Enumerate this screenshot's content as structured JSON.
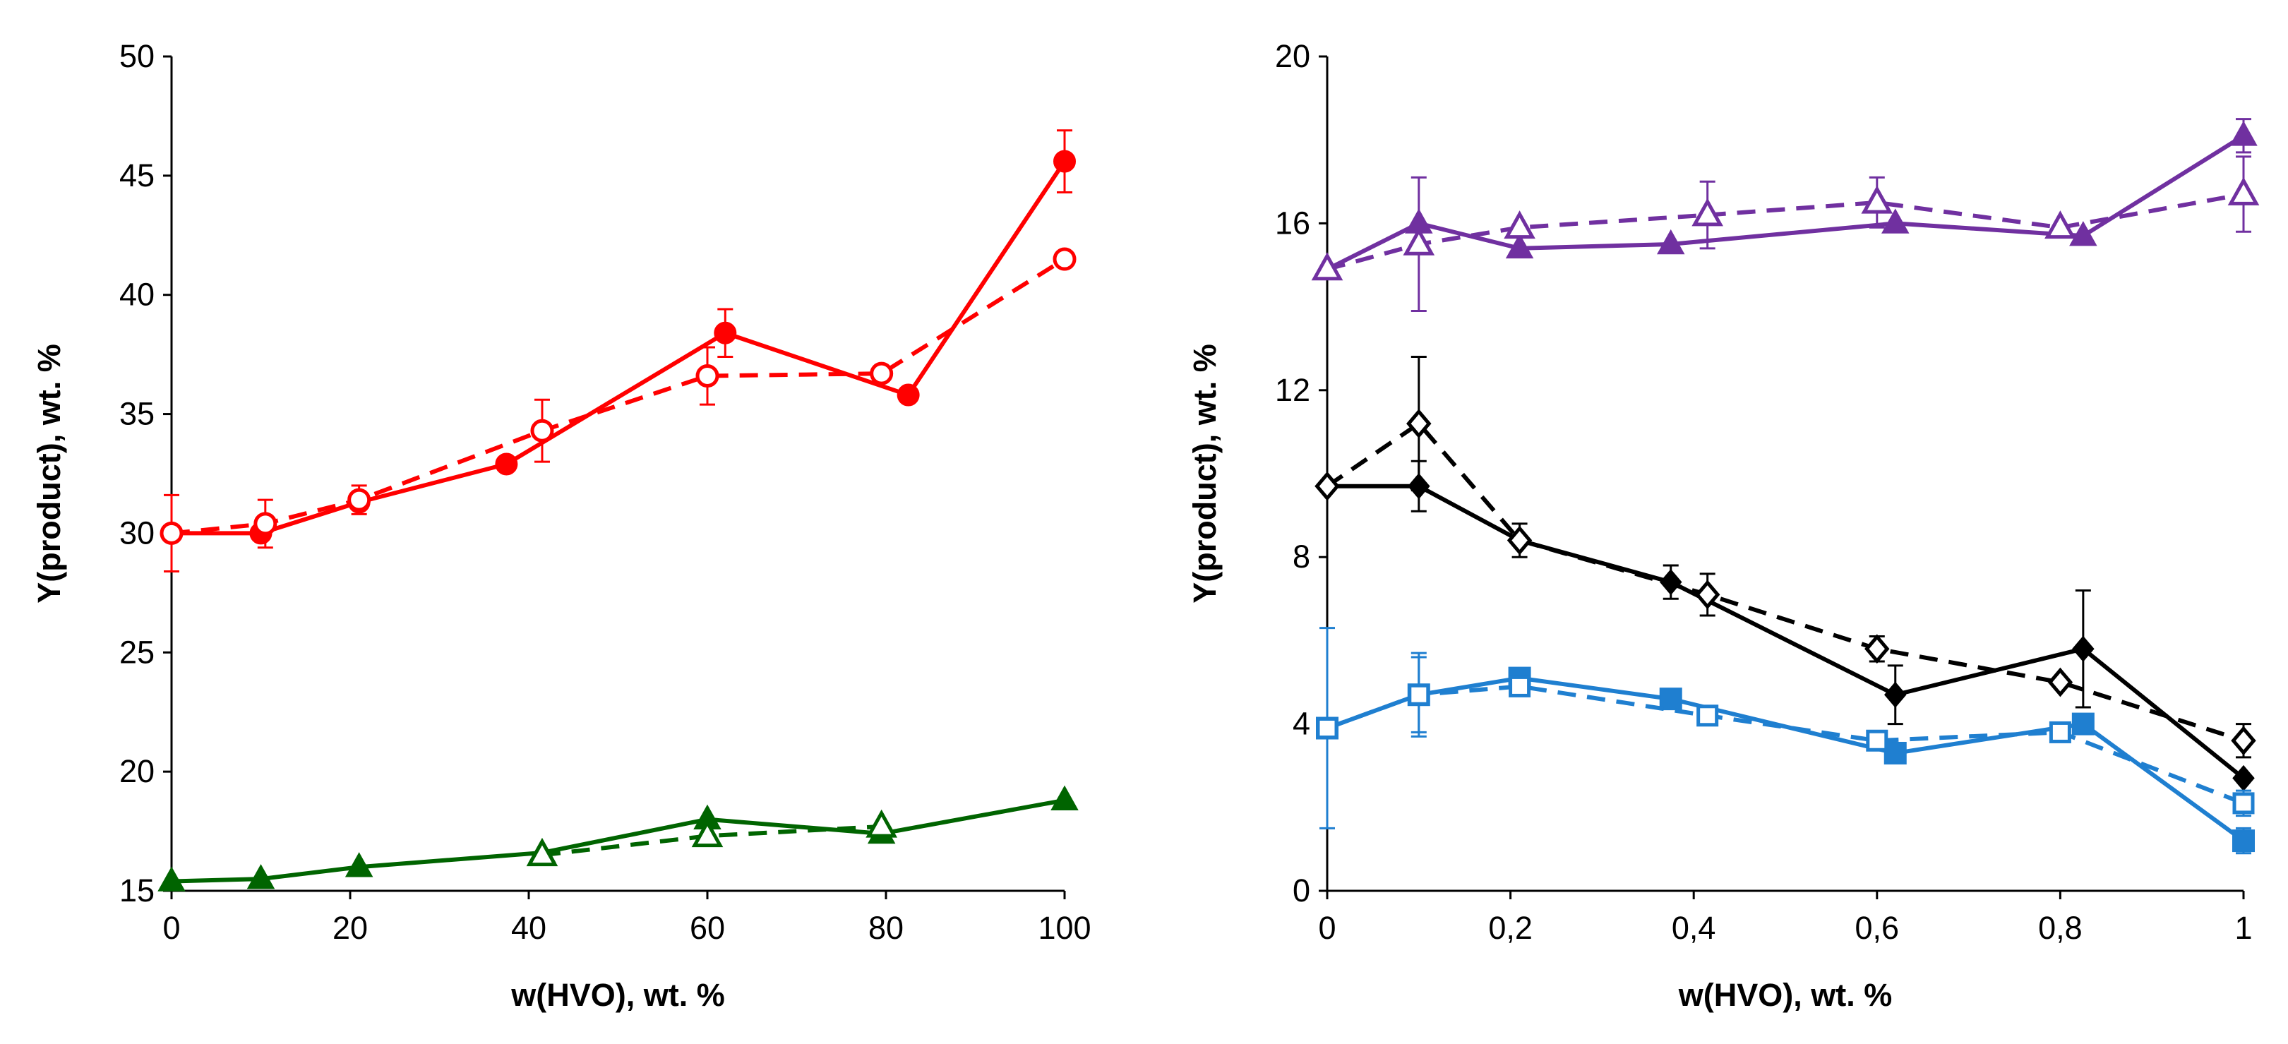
{
  "chart_data": [
    {
      "type": "line",
      "panel": "left",
      "title": "",
      "xlabel": "w(HVO), wt. %",
      "ylabel": "Y(product), wt. %",
      "xlim": [
        0,
        100
      ],
      "ylim": [
        15,
        50
      ],
      "xticks": [
        "0",
        "20",
        "40",
        "60",
        "80",
        "100"
      ],
      "yticks": [
        "15",
        "20",
        "25",
        "30",
        "35",
        "40",
        "45",
        "50"
      ],
      "series": [
        {
          "name": "red-filled-solid",
          "color": "#ff0000",
          "marker": "circle-filled",
          "dash": "solid",
          "points": [
            [
              0,
              30.0
            ],
            [
              10,
              30.0
            ],
            [
              21,
              31.3
            ],
            [
              37.5,
              32.9
            ],
            [
              62,
              38.4
            ],
            [
              82.5,
              35.8
            ],
            [
              100,
              45.6
            ]
          ],
          "err": [
            0,
            0,
            0,
            0,
            1.0,
            0,
            1.3
          ]
        },
        {
          "name": "red-open-dashed",
          "color": "#ff0000",
          "marker": "circle-open",
          "dash": "dashed",
          "points": [
            [
              0,
              30.0
            ],
            [
              10.5,
              30.4
            ],
            [
              21,
              31.4
            ],
            [
              41.5,
              34.3
            ],
            [
              60,
              36.6
            ],
            [
              79.5,
              36.7
            ],
            [
              100,
              41.5
            ]
          ],
          "err": [
            1.6,
            1.0,
            0.6,
            1.3,
            1.2,
            0,
            0
          ]
        },
        {
          "name": "green-filled-solid",
          "color": "#006400",
          "marker": "triangle-filled",
          "dash": "solid",
          "points": [
            [
              0,
              15.4
            ],
            [
              10,
              15.5
            ],
            [
              21,
              16.0
            ],
            [
              41.5,
              16.6
            ],
            [
              60,
              18.0
            ],
            [
              79.5,
              17.4
            ],
            [
              100,
              18.8
            ]
          ],
          "err": [
            0,
            0,
            0,
            0,
            0,
            0,
            0
          ]
        },
        {
          "name": "green-open-dashed",
          "color": "#006400",
          "marker": "triangle-open",
          "dash": "dashed",
          "points": [
            [
              41.5,
              16.5
            ],
            [
              60,
              17.3
            ],
            [
              79.5,
              17.7
            ]
          ],
          "err": [
            0,
            0,
            0
          ]
        }
      ]
    },
    {
      "type": "line",
      "panel": "right",
      "title": "",
      "xlabel": "w(HVO), wt. %",
      "ylabel": "Y(product), wt. %",
      "xlim": [
        0,
        1
      ],
      "ylim": [
        0,
        20
      ],
      "xticks": [
        "0",
        "0,2",
        "0,4",
        "0,6",
        "0,8",
        "1"
      ],
      "yticks": [
        "0",
        "4",
        "8",
        "12",
        "16",
        "20"
      ],
      "series": [
        {
          "name": "purple-filled-solid",
          "color": "#7030a0",
          "marker": "triangle-filled",
          "dash": "solid",
          "points": [
            [
              0,
              14.9
            ],
            [
              0.1,
              16.0
            ],
            [
              0.21,
              15.4
            ],
            [
              0.375,
              15.5
            ],
            [
              0.62,
              16.0
            ],
            [
              0.825,
              15.7
            ],
            [
              1.0,
              18.1
            ]
          ],
          "err": [
            0,
            0,
            0,
            0,
            0,
            0,
            0.4
          ]
        },
        {
          "name": "purple-open-dashed",
          "color": "#7030a0",
          "marker": "triangle-open",
          "dash": "dashed",
          "points": [
            [
              0,
              14.9
            ],
            [
              0.1,
              15.5
            ],
            [
              0.21,
              15.9
            ],
            [
              0.415,
              16.2
            ],
            [
              0.6,
              16.5
            ],
            [
              0.8,
              15.9
            ],
            [
              1.0,
              16.7
            ]
          ],
          "err": [
            0,
            1.6,
            0,
            0.8,
            0.6,
            0,
            0.9
          ]
        },
        {
          "name": "black-filled-solid",
          "color": "#000000",
          "marker": "diamond-filled",
          "dash": "solid",
          "points": [
            [
              0,
              9.7
            ],
            [
              0.1,
              9.7
            ],
            [
              0.21,
              8.4
            ],
            [
              0.375,
              7.4
            ],
            [
              0.62,
              4.7
            ],
            [
              0.825,
              5.8
            ],
            [
              1.0,
              2.7
            ]
          ],
          "err": [
            0,
            0.6,
            0.4,
            0.4,
            0.7,
            1.4,
            0
          ]
        },
        {
          "name": "black-open-dashed",
          "color": "#000000",
          "marker": "diamond-open",
          "dash": "dashed",
          "points": [
            [
              0,
              9.7
            ],
            [
              0.1,
              11.2
            ],
            [
              0.21,
              8.4
            ],
            [
              0.415,
              7.1
            ],
            [
              0.6,
              5.8
            ],
            [
              0.8,
              5.0
            ],
            [
              1.0,
              3.6
            ]
          ],
          "err": [
            0,
            1.6,
            0,
            0.5,
            0.3,
            0,
            0.4
          ]
        },
        {
          "name": "blue-filled-solid",
          "color": "#1f7fd0",
          "marker": "square-filled",
          "dash": "solid",
          "points": [
            [
              0,
              3.9
            ],
            [
              0.1,
              4.7
            ],
            [
              0.21,
              5.1
            ],
            [
              0.375,
              4.6
            ],
            [
              0.62,
              3.3
            ],
            [
              0.825,
              4.0
            ],
            [
              1.0,
              1.2
            ]
          ],
          "err": [
            2.4,
            1.0,
            0,
            0,
            0,
            0,
            0.3
          ]
        },
        {
          "name": "blue-open-dashed",
          "color": "#1f7fd0",
          "marker": "square-open",
          "dash": "dashed",
          "points": [
            [
              0,
              3.9
            ],
            [
              0.1,
              4.7
            ],
            [
              0.21,
              4.9
            ],
            [
              0.415,
              4.2
            ],
            [
              0.6,
              3.6
            ],
            [
              0.8,
              3.8
            ],
            [
              1.0,
              2.1
            ]
          ],
          "err": [
            0,
            0.9,
            0,
            0,
            0,
            0,
            0.3
          ]
        }
      ]
    }
  ]
}
